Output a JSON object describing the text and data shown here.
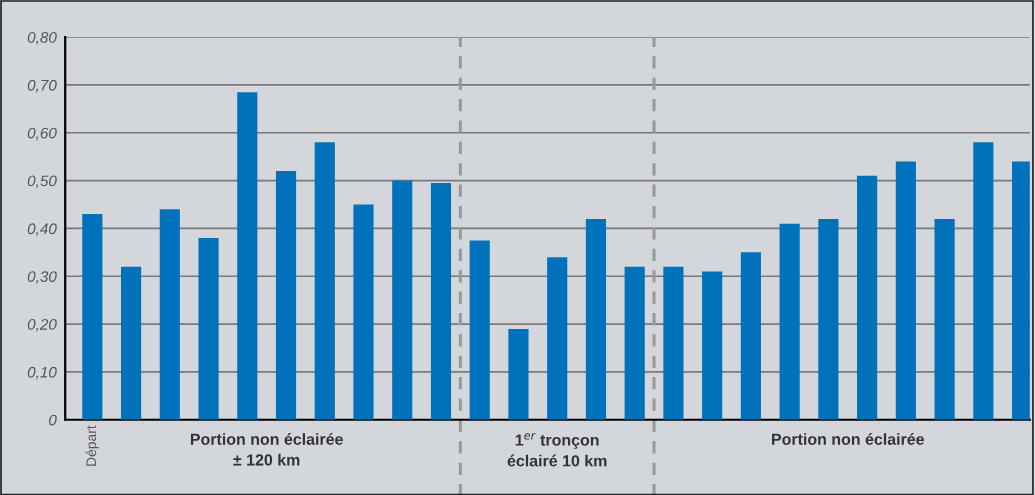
{
  "chart_data": {
    "type": "bar",
    "categories": [
      "Départ",
      null,
      null,
      null,
      null,
      null,
      null,
      null,
      null,
      null,
      null,
      null,
      null,
      null,
      null,
      null,
      null,
      null,
      null,
      null,
      null,
      null,
      null,
      null,
      null
    ],
    "values": [
      0.43,
      0.32,
      0.44,
      0.38,
      0.685,
      0.52,
      0.58,
      0.45,
      0.5,
      0.495,
      0.375,
      0.19,
      0.34,
      0.42,
      0.32,
      0.32,
      0.31,
      0.35,
      0.41,
      0.42,
      0.51,
      0.54,
      0.42,
      0.58,
      0.54
    ],
    "color": "#0072bc",
    "ylim": [
      0,
      0.8
    ],
    "yticks": [
      {
        "value": 0,
        "label": "0"
      },
      {
        "value": 0.1,
        "label": "0,10"
      },
      {
        "value": 0.2,
        "label": "0,20"
      },
      {
        "value": 0.3,
        "label": "0,30"
      },
      {
        "value": 0.4,
        "label": "0,40"
      },
      {
        "value": 0.5,
        "label": "0,50"
      },
      {
        "value": 0.6,
        "label": "0,60"
      },
      {
        "value": 0.7,
        "label": "0,70"
      },
      {
        "value": 0.8,
        "label": "0,80"
      }
    ],
    "grid": "y",
    "annotations": [
      "Portion non éclairée\n± 120 km",
      "1$^{er}$ tronçon\néclairé 10 km",
      "Portion non éclairée"
    ]
  }
}
